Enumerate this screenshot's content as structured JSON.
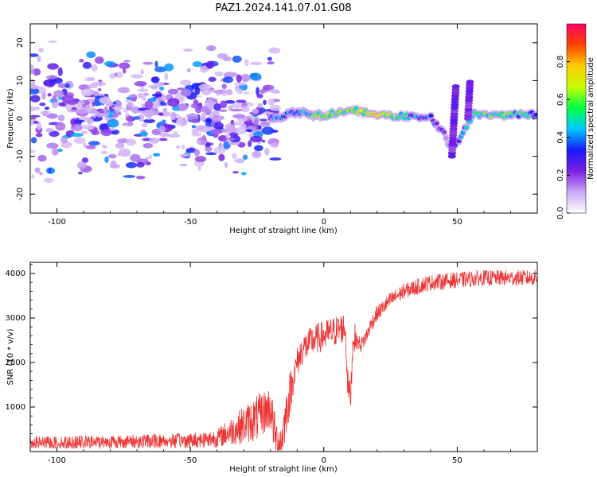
{
  "title": "PAZ1.2024.141.07.01.G08",
  "chart_data": [
    {
      "type": "heatmap",
      "xlabel": "Height of straight line (km)",
      "ylabel": "Frequency (Hz)",
      "xlim": [
        -110,
        80
      ],
      "ylim": [
        -25,
        25
      ],
      "x_ticks": [
        "-100",
        "-50",
        "0",
        "50"
      ],
      "y_ticks": [
        "-20",
        "-10",
        "0",
        "10",
        "20"
      ],
      "colorbar": {
        "label": "Normalized spectral amplitude",
        "range": [
          0,
          1
        ],
        "ticks": [
          "0.0",
          "0.2",
          "0.4",
          "0.6",
          "0.8"
        ],
        "colors": [
          "#ffffff",
          "#c9a6f5",
          "#7b1fe0",
          "#1a1aff",
          "#00c8ff",
          "#00ff44",
          "#c8ff00",
          "#ffcc00",
          "#ff4400",
          "#ff0066"
        ]
      },
      "ridge": [
        {
          "x": -20,
          "freq": 0.0,
          "amp": 0.3
        },
        {
          "x": -10,
          "freq": 1.5,
          "amp": 0.4
        },
        {
          "x": 0,
          "freq": 0.8,
          "amp": 0.6
        },
        {
          "x": 10,
          "freq": 2.5,
          "amp": 0.55
        },
        {
          "x": 20,
          "freq": 0.8,
          "amp": 0.75
        },
        {
          "x": 30,
          "freq": 0.6,
          "amp": 0.45
        },
        {
          "x": 40,
          "freq": 0.3,
          "amp": 0.35
        },
        {
          "x": 45,
          "freq": -4,
          "amp": 0.2
        },
        {
          "x": 48,
          "freq": -9,
          "amp": 0.15
        },
        {
          "x": 56,
          "freq": 1.2,
          "amp": 0.5
        },
        {
          "x": 65,
          "freq": 0.8,
          "amp": 0.55
        },
        {
          "x": 80,
          "freq": 1.2,
          "amp": 0.4
        }
      ]
    },
    {
      "type": "line",
      "xlabel": "Height of straight line (km)",
      "ylabel": "SNR (10 * v/v)",
      "xlim": [
        -110,
        80
      ],
      "ylim": [
        0,
        4250
      ],
      "x_ticks": [
        "-100",
        "-50",
        "0",
        "50"
      ],
      "y_ticks": [
        "1000",
        "2000",
        "3000",
        "4000"
      ],
      "color": "#ee3333",
      "series": [
        {
          "x": [
            -110,
            -100,
            -90,
            -80,
            -70,
            -60,
            -50,
            -40,
            -35,
            -30,
            -25,
            -22,
            -20,
            -18,
            -16,
            -14,
            -12,
            -10,
            -8,
            -6,
            -4,
            -2,
            0,
            2,
            4,
            6,
            8,
            9,
            10,
            11,
            12,
            14,
            16,
            18,
            20,
            25,
            30,
            35,
            40,
            50,
            60,
            70,
            80
          ],
          "y": [
            200,
            200,
            210,
            220,
            230,
            240,
            250,
            300,
            450,
            600,
            750,
            900,
            1000,
            250,
            200,
            900,
            1500,
            2000,
            2300,
            2400,
            2500,
            2550,
            2600,
            2650,
            2700,
            2750,
            2800,
            1500,
            1200,
            2600,
            2500,
            2400,
            2600,
            2900,
            3100,
            3400,
            3600,
            3700,
            3800,
            3850,
            3900,
            3900,
            3900
          ]
        }
      ]
    }
  ]
}
